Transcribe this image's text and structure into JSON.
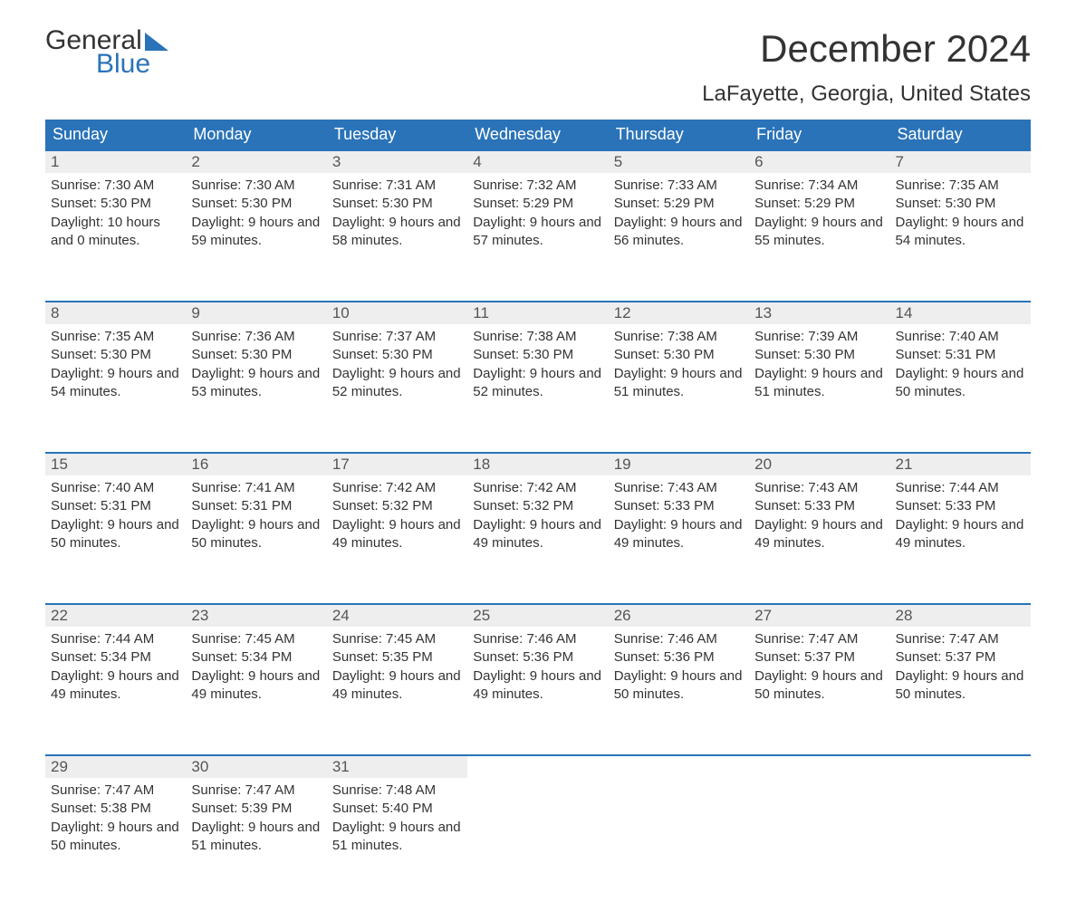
{
  "logo": {
    "word1": "General",
    "word2": "Blue"
  },
  "title": "December 2024",
  "location": "LaFayette, Georgia, United States",
  "colors": {
    "header_bg": "#2a73b8",
    "header_fg": "#ffffff",
    "daynum_bg": "#eeeeee",
    "rule": "#2a73b8",
    "text": "#333333",
    "page_bg": "#ffffff"
  },
  "day_labels": [
    "Sunday",
    "Monday",
    "Tuesday",
    "Wednesday",
    "Thursday",
    "Friday",
    "Saturday"
  ],
  "weeks": [
    [
      {
        "n": 1,
        "sr": "7:30 AM",
        "ss": "5:30 PM",
        "dl": "10 hours and 0 minutes."
      },
      {
        "n": 2,
        "sr": "7:30 AM",
        "ss": "5:30 PM",
        "dl": "9 hours and 59 minutes."
      },
      {
        "n": 3,
        "sr": "7:31 AM",
        "ss": "5:30 PM",
        "dl": "9 hours and 58 minutes."
      },
      {
        "n": 4,
        "sr": "7:32 AM",
        "ss": "5:29 PM",
        "dl": "9 hours and 57 minutes."
      },
      {
        "n": 5,
        "sr": "7:33 AM",
        "ss": "5:29 PM",
        "dl": "9 hours and 56 minutes."
      },
      {
        "n": 6,
        "sr": "7:34 AM",
        "ss": "5:29 PM",
        "dl": "9 hours and 55 minutes."
      },
      {
        "n": 7,
        "sr": "7:35 AM",
        "ss": "5:30 PM",
        "dl": "9 hours and 54 minutes."
      }
    ],
    [
      {
        "n": 8,
        "sr": "7:35 AM",
        "ss": "5:30 PM",
        "dl": "9 hours and 54 minutes."
      },
      {
        "n": 9,
        "sr": "7:36 AM",
        "ss": "5:30 PM",
        "dl": "9 hours and 53 minutes."
      },
      {
        "n": 10,
        "sr": "7:37 AM",
        "ss": "5:30 PM",
        "dl": "9 hours and 52 minutes."
      },
      {
        "n": 11,
        "sr": "7:38 AM",
        "ss": "5:30 PM",
        "dl": "9 hours and 52 minutes."
      },
      {
        "n": 12,
        "sr": "7:38 AM",
        "ss": "5:30 PM",
        "dl": "9 hours and 51 minutes."
      },
      {
        "n": 13,
        "sr": "7:39 AM",
        "ss": "5:30 PM",
        "dl": "9 hours and 51 minutes."
      },
      {
        "n": 14,
        "sr": "7:40 AM",
        "ss": "5:31 PM",
        "dl": "9 hours and 50 minutes."
      }
    ],
    [
      {
        "n": 15,
        "sr": "7:40 AM",
        "ss": "5:31 PM",
        "dl": "9 hours and 50 minutes."
      },
      {
        "n": 16,
        "sr": "7:41 AM",
        "ss": "5:31 PM",
        "dl": "9 hours and 50 minutes."
      },
      {
        "n": 17,
        "sr": "7:42 AM",
        "ss": "5:32 PM",
        "dl": "9 hours and 49 minutes."
      },
      {
        "n": 18,
        "sr": "7:42 AM",
        "ss": "5:32 PM",
        "dl": "9 hours and 49 minutes."
      },
      {
        "n": 19,
        "sr": "7:43 AM",
        "ss": "5:33 PM",
        "dl": "9 hours and 49 minutes."
      },
      {
        "n": 20,
        "sr": "7:43 AM",
        "ss": "5:33 PM",
        "dl": "9 hours and 49 minutes."
      },
      {
        "n": 21,
        "sr": "7:44 AM",
        "ss": "5:33 PM",
        "dl": "9 hours and 49 minutes."
      }
    ],
    [
      {
        "n": 22,
        "sr": "7:44 AM",
        "ss": "5:34 PM",
        "dl": "9 hours and 49 minutes."
      },
      {
        "n": 23,
        "sr": "7:45 AM",
        "ss": "5:34 PM",
        "dl": "9 hours and 49 minutes."
      },
      {
        "n": 24,
        "sr": "7:45 AM",
        "ss": "5:35 PM",
        "dl": "9 hours and 49 minutes."
      },
      {
        "n": 25,
        "sr": "7:46 AM",
        "ss": "5:36 PM",
        "dl": "9 hours and 49 minutes."
      },
      {
        "n": 26,
        "sr": "7:46 AM",
        "ss": "5:36 PM",
        "dl": "9 hours and 50 minutes."
      },
      {
        "n": 27,
        "sr": "7:47 AM",
        "ss": "5:37 PM",
        "dl": "9 hours and 50 minutes."
      },
      {
        "n": 28,
        "sr": "7:47 AM",
        "ss": "5:37 PM",
        "dl": "9 hours and 50 minutes."
      }
    ],
    [
      {
        "n": 29,
        "sr": "7:47 AM",
        "ss": "5:38 PM",
        "dl": "9 hours and 50 minutes."
      },
      {
        "n": 30,
        "sr": "7:47 AM",
        "ss": "5:39 PM",
        "dl": "9 hours and 51 minutes."
      },
      {
        "n": 31,
        "sr": "7:48 AM",
        "ss": "5:40 PM",
        "dl": "9 hours and 51 minutes."
      },
      null,
      null,
      null,
      null
    ]
  ],
  "labels": {
    "sunrise": "Sunrise:",
    "sunset": "Sunset:",
    "daylight": "Daylight:"
  }
}
